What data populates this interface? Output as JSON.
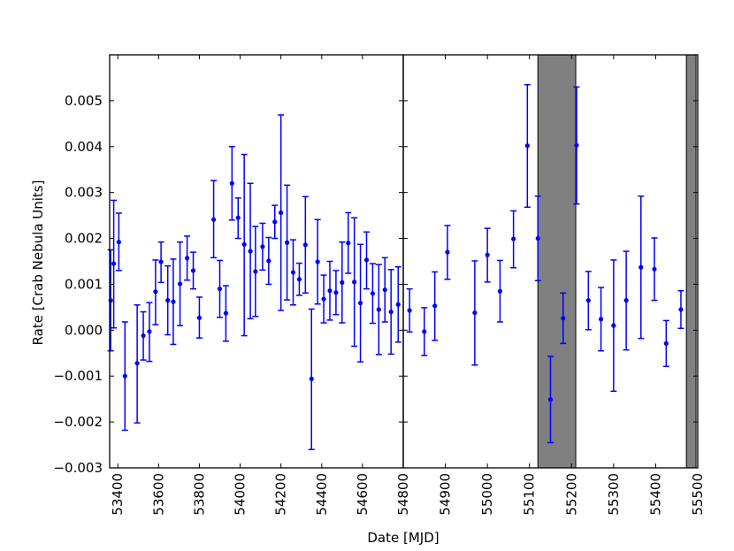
{
  "chart_data": {
    "type": "scatter",
    "ylabel": "Rate [Crab Nebula Units]",
    "xlabel": "Date [MJD]",
    "ylim": [
      -0.003,
      0.006
    ],
    "y_ticks": [
      -0.003,
      -0.002,
      -0.001,
      0.0,
      0.001,
      0.002,
      0.003,
      0.004,
      0.005
    ],
    "y_tick_labels": [
      "−0.003",
      "−0.002",
      "−0.001",
      "0.000",
      "0.001",
      "0.002",
      "0.003",
      "0.004",
      "0.005"
    ],
    "marker_color": "#0000ff",
    "shade_color": "#808080",
    "grid": false,
    "legend": "none",
    "panels": [
      {
        "xlim": [
          53360,
          54800
        ],
        "x_ticks": [
          53400,
          53600,
          53800,
          54000,
          54200,
          54400,
          54600
        ],
        "x_tick_labels": [
          "53400",
          "53600",
          "53800",
          "54000",
          "54200",
          "54400",
          "54600"
        ],
        "shaded_regions": [],
        "points": [
          {
            "x": 53365,
            "y": 0.00065,
            "lo": -0.00045,
            "hi": 0.00175
          },
          {
            "x": 53380,
            "y": 0.00145,
            "lo": 5e-05,
            "hi": 0.00283
          },
          {
            "x": 53405,
            "y": 0.00192,
            "lo": 0.0013,
            "hi": 0.00255
          },
          {
            "x": 53435,
            "y": -0.001,
            "lo": -0.00218,
            "hi": 0.00018
          },
          {
            "x": 53495,
            "y": -0.00072,
            "lo": -0.00202,
            "hi": 0.00055
          },
          {
            "x": 53525,
            "y": -0.00012,
            "lo": -0.00065,
            "hi": 0.0004
          },
          {
            "x": 53555,
            "y": -3e-05,
            "lo": -0.00068,
            "hi": 0.0006
          },
          {
            "x": 53585,
            "y": 0.00084,
            "lo": 0.00012,
            "hi": 0.00153
          },
          {
            "x": 53612,
            "y": 0.00149,
            "lo": 0.00104,
            "hi": 0.00192
          },
          {
            "x": 53645,
            "y": 0.00065,
            "lo": -0.0001,
            "hi": 0.0014
          },
          {
            "x": 53672,
            "y": 0.00062,
            "lo": -0.00031,
            "hi": 0.00155
          },
          {
            "x": 53705,
            "y": 0.00101,
            "lo": 0.0001,
            "hi": 0.00192
          },
          {
            "x": 53740,
            "y": 0.00157,
            "lo": 0.00109,
            "hi": 0.00205
          },
          {
            "x": 53770,
            "y": 0.0013,
            "lo": 0.0009,
            "hi": 0.0017
          },
          {
            "x": 53800,
            "y": 0.00027,
            "lo": -0.00017,
            "hi": 0.00072
          },
          {
            "x": 53870,
            "y": 0.00241,
            "lo": 0.00158,
            "hi": 0.00326
          },
          {
            "x": 53900,
            "y": 0.0009,
            "lo": 0.00028,
            "hi": 0.00152
          },
          {
            "x": 53930,
            "y": 0.00037,
            "lo": -0.00024,
            "hi": 0.00097
          },
          {
            "x": 53960,
            "y": 0.0032,
            "lo": 0.0024,
            "hi": 0.004
          },
          {
            "x": 53990,
            "y": 0.00245,
            "lo": 0.002,
            "hi": 0.00288
          },
          {
            "x": 54020,
            "y": 0.00187,
            "lo": -0.00012,
            "hi": 0.00383
          },
          {
            "x": 54050,
            "y": 0.00172,
            "lo": 0.00025,
            "hi": 0.0032
          },
          {
            "x": 54075,
            "y": 0.00128,
            "lo": 0.0003,
            "hi": 0.00226
          },
          {
            "x": 54110,
            "y": 0.00182,
            "lo": 0.00131,
            "hi": 0.00233
          },
          {
            "x": 54140,
            "y": 0.00151,
            "lo": 0.001,
            "hi": 0.00202
          },
          {
            "x": 54170,
            "y": 0.00236,
            "lo": 0.002,
            "hi": 0.00272
          },
          {
            "x": 54200,
            "y": 0.00256,
            "lo": 0.00043,
            "hi": 0.00469
          },
          {
            "x": 54230,
            "y": 0.00191,
            "lo": 0.00066,
            "hi": 0.00316
          },
          {
            "x": 54260,
            "y": 0.00126,
            "lo": 0.00055,
            "hi": 0.00197
          },
          {
            "x": 54290,
            "y": 0.00111,
            "lo": 0.00076,
            "hi": 0.00146
          },
          {
            "x": 54320,
            "y": 0.00186,
            "lo": 0.00081,
            "hi": 0.00291
          },
          {
            "x": 54350,
            "y": -0.00106,
            "lo": -0.0026,
            "hi": 0.00046
          },
          {
            "x": 54380,
            "y": 0.00149,
            "lo": 0.00057,
            "hi": 0.00241
          },
          {
            "x": 54410,
            "y": 0.00068,
            "lo": 0.00016,
            "hi": 0.0012
          },
          {
            "x": 54440,
            "y": 0.00086,
            "lo": 0.00022,
            "hi": 0.0015
          },
          {
            "x": 54470,
            "y": 0.00082,
            "lo": 0.00034,
            "hi": 0.0013
          },
          {
            "x": 54500,
            "y": 0.00104,
            "lo": 0.00016,
            "hi": 0.00192
          },
          {
            "x": 54530,
            "y": 0.0019,
            "lo": 0.00124,
            "hi": 0.00256
          },
          {
            "x": 54560,
            "y": 0.00105,
            "lo": -0.00035,
            "hi": 0.00245
          },
          {
            "x": 54590,
            "y": 0.00059,
            "lo": -0.00069,
            "hi": 0.00187
          },
          {
            "x": 54620,
            "y": 0.00153,
            "lo": 0.0009,
            "hi": 0.00214
          },
          {
            "x": 54650,
            "y": 0.0008,
            "lo": 0.00015,
            "hi": 0.00145
          },
          {
            "x": 54680,
            "y": 0.00045,
            "lo": -0.00053,
            "hi": 0.00143
          },
          {
            "x": 54710,
            "y": 0.00088,
            "lo": 0.00018,
            "hi": 0.00158
          },
          {
            "x": 54740,
            "y": 0.0004,
            "lo": -0.00052,
            "hi": 0.00132
          },
          {
            "x": 54775,
            "y": 0.00056,
            "lo": -0.00026,
            "hi": 0.00138
          }
        ]
      },
      {
        "xlim": [
          54800,
          55500
        ],
        "x_ticks": [
          54800,
          54900,
          55000,
          55100,
          55200,
          55300,
          55400,
          55500
        ],
        "x_tick_labels": [
          "54800",
          "54900",
          "55000",
          "55100",
          "55200",
          "55300",
          "55400",
          "55500"
        ],
        "shaded_regions": [
          [
            55120,
            55210
          ],
          [
            55473,
            55496
          ]
        ],
        "points": [
          {
            "x": 54815,
            "y": 0.00043,
            "lo": -4e-05,
            "hi": 0.0009
          },
          {
            "x": 54850,
            "y": -3e-05,
            "lo": -0.00055,
            "hi": 0.00049
          },
          {
            "x": 54875,
            "y": 0.00053,
            "lo": -0.00022,
            "hi": 0.00127
          },
          {
            "x": 54905,
            "y": 0.0017,
            "lo": 0.00111,
            "hi": 0.00228
          },
          {
            "x": 54970,
            "y": 0.00038,
            "lo": -0.00076,
            "hi": 0.00151
          },
          {
            "x": 55000,
            "y": 0.00164,
            "lo": 0.00105,
            "hi": 0.00222
          },
          {
            "x": 55030,
            "y": 0.00085,
            "lo": 0.00018,
            "hi": 0.00152
          },
          {
            "x": 55062,
            "y": 0.00199,
            "lo": 0.00136,
            "hi": 0.0026
          },
          {
            "x": 55095,
            "y": 0.00402,
            "lo": 0.00268,
            "hi": 0.00535
          },
          {
            "x": 55120,
            "y": 0.002,
            "lo": 0.00108,
            "hi": 0.00292
          },
          {
            "x": 55150,
            "y": -0.00151,
            "lo": -0.00245,
            "hi": -0.00057
          },
          {
            "x": 55180,
            "y": 0.00026,
            "lo": -0.00029,
            "hi": 0.00081
          },
          {
            "x": 55212,
            "y": 0.00403,
            "lo": 0.00275,
            "hi": 0.0053
          },
          {
            "x": 55240,
            "y": 0.00065,
            "lo": 1e-05,
            "hi": 0.00128
          },
          {
            "x": 55270,
            "y": 0.00024,
            "lo": -0.00045,
            "hi": 0.00093
          },
          {
            "x": 55300,
            "y": 0.0001,
            "lo": -0.00133,
            "hi": 0.00153
          },
          {
            "x": 55330,
            "y": 0.00065,
            "lo": -0.00043,
            "hi": 0.00172
          },
          {
            "x": 55365,
            "y": 0.00137,
            "lo": -0.00018,
            "hi": 0.00292
          },
          {
            "x": 55397,
            "y": 0.00133,
            "lo": 0.00065,
            "hi": 0.00201
          },
          {
            "x": 55425,
            "y": -0.00029,
            "lo": -0.00079,
            "hi": 0.00021
          },
          {
            "x": 55460,
            "y": 0.00045,
            "lo": 4e-05,
            "hi": 0.00086
          }
        ]
      }
    ]
  }
}
